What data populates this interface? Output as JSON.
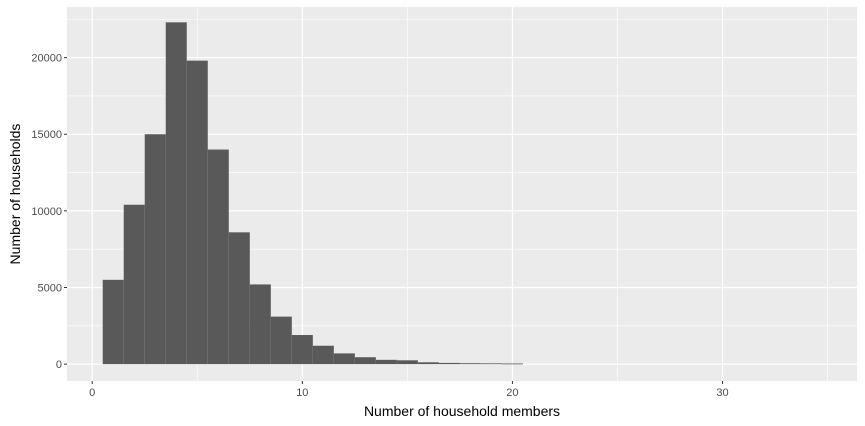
{
  "chart_data": {
    "type": "bar",
    "xlabel": "Number of household members",
    "ylabel": "Number of households",
    "xlim": [
      -1.2,
      36.4
    ],
    "ylim": [
      -1100,
      23300
    ],
    "x_ticks": [
      0,
      10,
      20,
      30
    ],
    "y_ticks": [
      0,
      5000,
      10000,
      15000,
      20000
    ],
    "grid": true,
    "bin_width": 1,
    "bins": [
      {
        "x": 1,
        "value": 5500
      },
      {
        "x": 2,
        "value": 10400
      },
      {
        "x": 3,
        "value": 15000
      },
      {
        "x": 4,
        "value": 22300
      },
      {
        "x": 5,
        "value": 19800
      },
      {
        "x": 6,
        "value": 14000
      },
      {
        "x": 7,
        "value": 8600
      },
      {
        "x": 8,
        "value": 5200
      },
      {
        "x": 9,
        "value": 3100
      },
      {
        "x": 10,
        "value": 1900
      },
      {
        "x": 11,
        "value": 1200
      },
      {
        "x": 12,
        "value": 700
      },
      {
        "x": 13,
        "value": 450
      },
      {
        "x": 14,
        "value": 280
      },
      {
        "x": 15,
        "value": 250
      },
      {
        "x": 16,
        "value": 120
      },
      {
        "x": 17,
        "value": 80
      },
      {
        "x": 18,
        "value": 60
      },
      {
        "x": 19,
        "value": 50
      },
      {
        "x": 20,
        "value": 40
      }
    ],
    "colors": {
      "panel": "#ebebeb",
      "grid": "#ffffff",
      "bar": "#595959",
      "tick_label": "#4d4d4d",
      "axis_title": "#000000"
    }
  }
}
